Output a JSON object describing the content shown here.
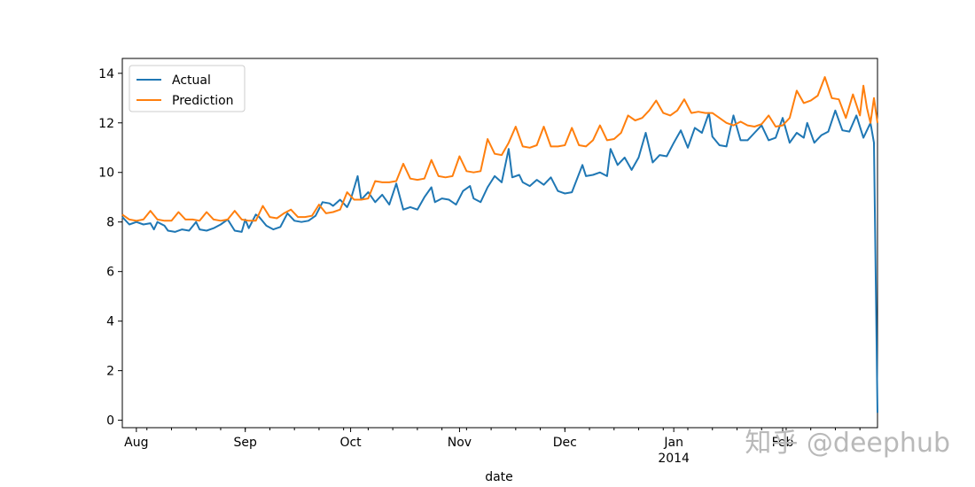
{
  "chart_data": {
    "type": "line",
    "title": "",
    "xlabel": "date",
    "ylabel": "",
    "ylim": [
      -0.3,
      14.6
    ],
    "yticks": [
      0,
      2,
      4,
      6,
      8,
      10,
      12,
      14
    ],
    "xlim": [
      "2013-07-28",
      "2014-02-28"
    ],
    "xticks": [
      {
        "date": "2013-08-01",
        "label": "Aug",
        "sublabel": ""
      },
      {
        "date": "2013-09-01",
        "label": "Sep",
        "sublabel": ""
      },
      {
        "date": "2013-10-01",
        "label": "Oct",
        "sublabel": ""
      },
      {
        "date": "2013-11-01",
        "label": "Nov",
        "sublabel": ""
      },
      {
        "date": "2013-12-01",
        "label": "Dec",
        "sublabel": ""
      },
      {
        "date": "2014-01-01",
        "label": "Jan",
        "sublabel": "2014"
      },
      {
        "date": "2014-02-01",
        "label": "Feb",
        "sublabel": ""
      }
    ],
    "minor_ticks_weekly_from": "2013-08-04",
    "grid": false,
    "legend_position": "upper-left",
    "series": [
      {
        "name": "Actual",
        "color": "#1f77b4",
        "points": [
          [
            "2013-07-28",
            8.2
          ],
          [
            "2013-07-30",
            7.9
          ],
          [
            "2013-08-01",
            8.0
          ],
          [
            "2013-08-03",
            7.9
          ],
          [
            "2013-08-05",
            7.95
          ],
          [
            "2013-08-06",
            7.7
          ],
          [
            "2013-08-07",
            8.0
          ],
          [
            "2013-08-09",
            7.85
          ],
          [
            "2013-08-10",
            7.65
          ],
          [
            "2013-08-12",
            7.6
          ],
          [
            "2013-08-14",
            7.7
          ],
          [
            "2013-08-16",
            7.65
          ],
          [
            "2013-08-18",
            8.0
          ],
          [
            "2013-08-19",
            7.7
          ],
          [
            "2013-08-21",
            7.65
          ],
          [
            "2013-08-23",
            7.75
          ],
          [
            "2013-08-25",
            7.9
          ],
          [
            "2013-08-27",
            8.1
          ],
          [
            "2013-08-29",
            7.65
          ],
          [
            "2013-08-31",
            7.6
          ],
          [
            "2013-09-01",
            8.1
          ],
          [
            "2013-09-02",
            7.75
          ],
          [
            "2013-09-04",
            8.3
          ],
          [
            "2013-09-05",
            8.2
          ],
          [
            "2013-09-07",
            7.85
          ],
          [
            "2013-09-09",
            7.7
          ],
          [
            "2013-09-11",
            7.8
          ],
          [
            "2013-09-13",
            8.35
          ],
          [
            "2013-09-15",
            8.05
          ],
          [
            "2013-09-17",
            8.0
          ],
          [
            "2013-09-19",
            8.05
          ],
          [
            "2013-09-21",
            8.25
          ],
          [
            "2013-09-23",
            8.8
          ],
          [
            "2013-09-25",
            8.75
          ],
          [
            "2013-09-26",
            8.65
          ],
          [
            "2013-09-28",
            8.9
          ],
          [
            "2013-09-30",
            8.6
          ],
          [
            "2013-10-01",
            8.9
          ],
          [
            "2013-10-03",
            9.85
          ],
          [
            "2013-10-04",
            8.9
          ],
          [
            "2013-10-06",
            9.2
          ],
          [
            "2013-10-08",
            8.8
          ],
          [
            "2013-10-10",
            9.1
          ],
          [
            "2013-10-12",
            8.7
          ],
          [
            "2013-10-14",
            9.55
          ],
          [
            "2013-10-16",
            8.5
          ],
          [
            "2013-10-18",
            8.6
          ],
          [
            "2013-10-20",
            8.5
          ],
          [
            "2013-10-22",
            9.0
          ],
          [
            "2013-10-24",
            9.4
          ],
          [
            "2013-10-25",
            8.8
          ],
          [
            "2013-10-27",
            8.95
          ],
          [
            "2013-10-29",
            8.9
          ],
          [
            "2013-10-31",
            8.7
          ],
          [
            "2013-11-02",
            9.25
          ],
          [
            "2013-11-04",
            9.45
          ],
          [
            "2013-11-05",
            8.95
          ],
          [
            "2013-11-07",
            8.8
          ],
          [
            "2013-11-09",
            9.4
          ],
          [
            "2013-11-11",
            9.85
          ],
          [
            "2013-11-13",
            9.6
          ],
          [
            "2013-11-15",
            10.95
          ],
          [
            "2013-11-16",
            9.8
          ],
          [
            "2013-11-18",
            9.9
          ],
          [
            "2013-11-19",
            9.6
          ],
          [
            "2013-11-21",
            9.45
          ],
          [
            "2013-11-23",
            9.7
          ],
          [
            "2013-11-25",
            9.5
          ],
          [
            "2013-11-27",
            9.8
          ],
          [
            "2013-11-29",
            9.25
          ],
          [
            "2013-12-01",
            9.15
          ],
          [
            "2013-12-03",
            9.2
          ],
          [
            "2013-12-06",
            10.3
          ],
          [
            "2013-12-07",
            9.85
          ],
          [
            "2013-12-09",
            9.9
          ],
          [
            "2013-12-11",
            10.0
          ],
          [
            "2013-12-13",
            9.85
          ],
          [
            "2013-12-14",
            10.95
          ],
          [
            "2013-12-16",
            10.3
          ],
          [
            "2013-12-18",
            10.6
          ],
          [
            "2013-12-20",
            10.1
          ],
          [
            "2013-12-22",
            10.6
          ],
          [
            "2013-12-24",
            11.6
          ],
          [
            "2013-12-26",
            10.4
          ],
          [
            "2013-12-28",
            10.7
          ],
          [
            "2013-12-30",
            10.65
          ],
          [
            "2014-01-01",
            11.2
          ],
          [
            "2014-01-03",
            11.7
          ],
          [
            "2014-01-05",
            11.0
          ],
          [
            "2014-01-07",
            11.8
          ],
          [
            "2014-01-09",
            11.6
          ],
          [
            "2014-01-11",
            12.4
          ],
          [
            "2014-01-12",
            11.45
          ],
          [
            "2014-01-14",
            11.1
          ],
          [
            "2014-01-16",
            11.05
          ],
          [
            "2014-01-18",
            12.3
          ],
          [
            "2014-01-20",
            11.3
          ],
          [
            "2014-01-22",
            11.3
          ],
          [
            "2014-01-24",
            11.6
          ],
          [
            "2014-01-26",
            11.9
          ],
          [
            "2014-01-28",
            11.3
          ],
          [
            "2014-01-30",
            11.4
          ],
          [
            "2014-02-01",
            12.2
          ],
          [
            "2014-02-03",
            11.2
          ],
          [
            "2014-02-05",
            11.6
          ],
          [
            "2014-02-07",
            11.4
          ],
          [
            "2014-02-08",
            12.0
          ],
          [
            "2014-02-10",
            11.2
          ],
          [
            "2014-02-12",
            11.5
          ],
          [
            "2014-02-14",
            11.65
          ],
          [
            "2014-02-16",
            12.5
          ],
          [
            "2014-02-18",
            11.7
          ],
          [
            "2014-02-20",
            11.65
          ],
          [
            "2014-02-22",
            12.3
          ],
          [
            "2014-02-24",
            11.4
          ],
          [
            "2014-02-26",
            12.0
          ],
          [
            "2014-02-27",
            11.2
          ],
          [
            "2014-02-28",
            0.3
          ]
        ]
      },
      {
        "name": "Prediction",
        "color": "#ff7f0e",
        "points": [
          [
            "2013-07-28",
            8.3
          ],
          [
            "2013-07-30",
            8.1
          ],
          [
            "2013-08-01",
            8.05
          ],
          [
            "2013-08-03",
            8.1
          ],
          [
            "2013-08-05",
            8.45
          ],
          [
            "2013-08-07",
            8.1
          ],
          [
            "2013-08-09",
            8.05
          ],
          [
            "2013-08-11",
            8.05
          ],
          [
            "2013-08-13",
            8.4
          ],
          [
            "2013-08-15",
            8.1
          ],
          [
            "2013-08-17",
            8.1
          ],
          [
            "2013-08-19",
            8.05
          ],
          [
            "2013-08-21",
            8.4
          ],
          [
            "2013-08-23",
            8.1
          ],
          [
            "2013-08-25",
            8.05
          ],
          [
            "2013-08-27",
            8.1
          ],
          [
            "2013-08-29",
            8.45
          ],
          [
            "2013-08-31",
            8.1
          ],
          [
            "2013-09-02",
            8.05
          ],
          [
            "2013-09-04",
            8.05
          ],
          [
            "2013-09-06",
            8.65
          ],
          [
            "2013-09-08",
            8.2
          ],
          [
            "2013-09-10",
            8.15
          ],
          [
            "2013-09-12",
            8.35
          ],
          [
            "2013-09-14",
            8.5
          ],
          [
            "2013-09-16",
            8.2
          ],
          [
            "2013-09-18",
            8.2
          ],
          [
            "2013-09-20",
            8.25
          ],
          [
            "2013-09-22",
            8.7
          ],
          [
            "2013-09-24",
            8.35
          ],
          [
            "2013-09-26",
            8.4
          ],
          [
            "2013-09-28",
            8.5
          ],
          [
            "2013-09-30",
            9.2
          ],
          [
            "2013-10-02",
            8.9
          ],
          [
            "2013-10-04",
            8.9
          ],
          [
            "2013-10-06",
            8.95
          ],
          [
            "2013-10-08",
            9.65
          ],
          [
            "2013-10-10",
            9.6
          ],
          [
            "2013-10-12",
            9.6
          ],
          [
            "2013-10-14",
            9.65
          ],
          [
            "2013-10-16",
            10.35
          ],
          [
            "2013-10-18",
            9.75
          ],
          [
            "2013-10-20",
            9.7
          ],
          [
            "2013-10-22",
            9.75
          ],
          [
            "2013-10-24",
            10.5
          ],
          [
            "2013-10-26",
            9.85
          ],
          [
            "2013-10-28",
            9.8
          ],
          [
            "2013-10-30",
            9.85
          ],
          [
            "2013-11-01",
            10.65
          ],
          [
            "2013-11-03",
            10.05
          ],
          [
            "2013-11-05",
            10.0
          ],
          [
            "2013-11-07",
            10.05
          ],
          [
            "2013-11-09",
            11.35
          ],
          [
            "2013-11-11",
            10.75
          ],
          [
            "2013-11-13",
            10.7
          ],
          [
            "2013-11-15",
            11.2
          ],
          [
            "2013-11-17",
            11.85
          ],
          [
            "2013-11-19",
            11.05
          ],
          [
            "2013-11-21",
            11.0
          ],
          [
            "2013-11-23",
            11.1
          ],
          [
            "2013-11-25",
            11.85
          ],
          [
            "2013-11-27",
            11.05
          ],
          [
            "2013-11-29",
            11.05
          ],
          [
            "2013-12-01",
            11.1
          ],
          [
            "2013-12-03",
            11.8
          ],
          [
            "2013-12-05",
            11.1
          ],
          [
            "2013-12-07",
            11.05
          ],
          [
            "2013-12-09",
            11.3
          ],
          [
            "2013-12-11",
            11.9
          ],
          [
            "2013-12-13",
            11.3
          ],
          [
            "2013-12-15",
            11.35
          ],
          [
            "2013-12-17",
            11.6
          ],
          [
            "2013-12-19",
            12.3
          ],
          [
            "2013-12-21",
            12.1
          ],
          [
            "2013-12-23",
            12.2
          ],
          [
            "2013-12-25",
            12.5
          ],
          [
            "2013-12-27",
            12.9
          ],
          [
            "2013-12-29",
            12.4
          ],
          [
            "2013-12-31",
            12.3
          ],
          [
            "2014-01-02",
            12.5
          ],
          [
            "2014-01-04",
            12.95
          ],
          [
            "2014-01-06",
            12.4
          ],
          [
            "2014-01-08",
            12.45
          ],
          [
            "2014-01-10",
            12.4
          ],
          [
            "2014-01-12",
            12.4
          ],
          [
            "2014-01-14",
            12.2
          ],
          [
            "2014-01-16",
            12.0
          ],
          [
            "2014-01-18",
            11.9
          ],
          [
            "2014-01-20",
            12.05
          ],
          [
            "2014-01-22",
            11.9
          ],
          [
            "2014-01-24",
            11.85
          ],
          [
            "2014-01-26",
            11.95
          ],
          [
            "2014-01-28",
            12.3
          ],
          [
            "2014-01-30",
            11.85
          ],
          [
            "2014-02-01",
            11.9
          ],
          [
            "2014-02-03",
            12.2
          ],
          [
            "2014-02-05",
            13.3
          ],
          [
            "2014-02-07",
            12.8
          ],
          [
            "2014-02-09",
            12.9
          ],
          [
            "2014-02-11",
            13.1
          ],
          [
            "2014-02-13",
            13.85
          ],
          [
            "2014-02-15",
            13.0
          ],
          [
            "2014-02-17",
            12.95
          ],
          [
            "2014-02-19",
            12.2
          ],
          [
            "2014-02-21",
            13.15
          ],
          [
            "2014-02-23",
            12.3
          ],
          [
            "2014-02-24",
            13.5
          ],
          [
            "2014-02-25",
            12.6
          ],
          [
            "2014-02-26",
            12.0
          ],
          [
            "2014-02-27",
            13.0
          ],
          [
            "2014-02-28",
            12.0
          ]
        ]
      }
    ]
  },
  "watermark": "知乎 @deephub"
}
